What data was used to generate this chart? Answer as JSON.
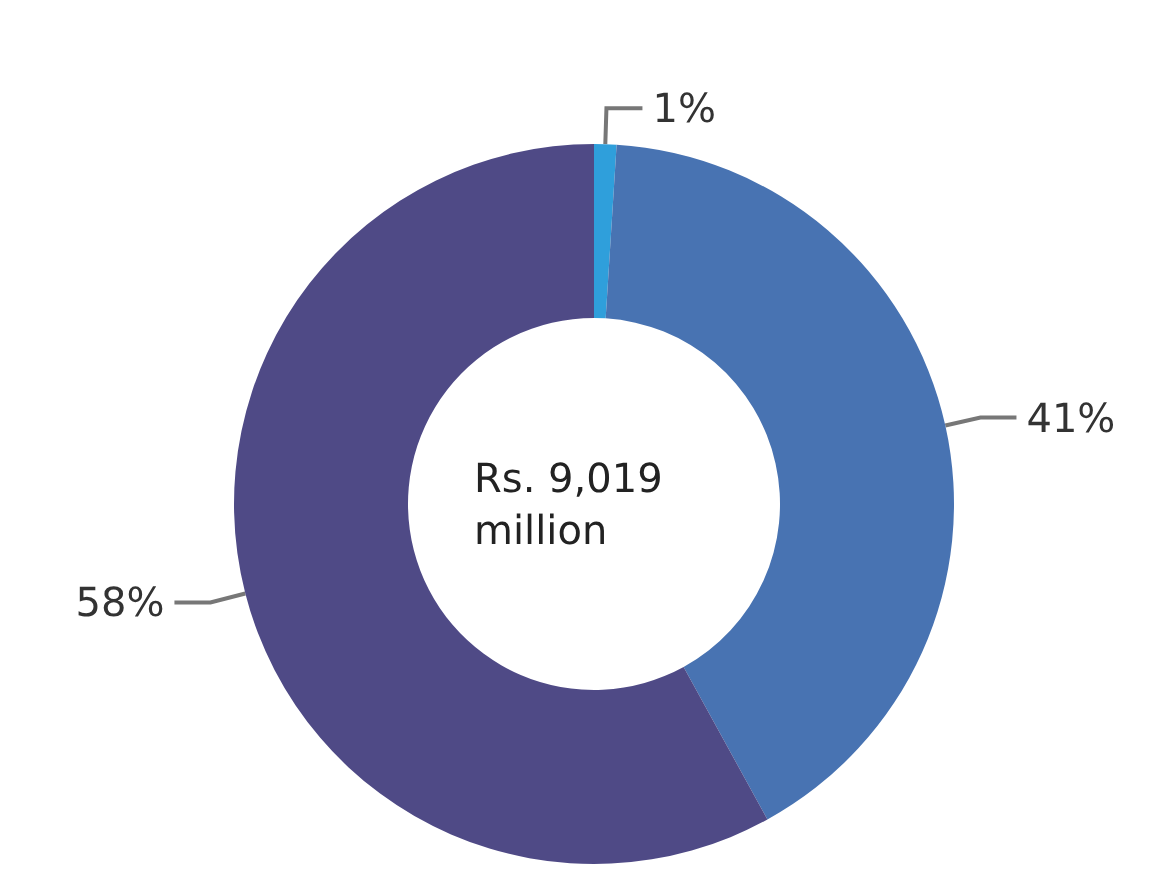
{
  "chart_data": {
    "type": "donut",
    "categories": [
      null,
      null,
      null
    ],
    "values": [
      1,
      41,
      58
    ],
    "value_labels": [
      "1%",
      "41%",
      "58%"
    ],
    "colors": [
      "#2f9fdb",
      "#4873b2",
      "#4f4a86"
    ],
    "annotations": [
      "Rs. 9,019 million"
    ]
  }
}
